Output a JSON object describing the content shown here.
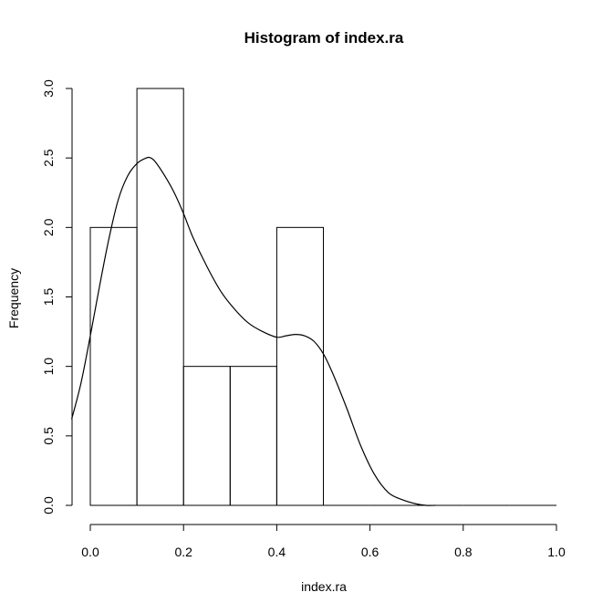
{
  "chart_data": {
    "type": "bar",
    "title": "Histogram of index.ra",
    "xlabel": "index.ra",
    "ylabel": "Frequency",
    "bins": [
      {
        "start": 0.0,
        "end": 0.1,
        "count": 2
      },
      {
        "start": 0.1,
        "end": 0.2,
        "count": 3
      },
      {
        "start": 0.2,
        "end": 0.3,
        "count": 1
      },
      {
        "start": 0.3,
        "end": 0.4,
        "count": 1
      },
      {
        "start": 0.4,
        "end": 0.5,
        "count": 2
      },
      {
        "start": 0.5,
        "end": 0.6,
        "count": 0
      },
      {
        "start": 0.6,
        "end": 0.7,
        "count": 0
      },
      {
        "start": 0.7,
        "end": 0.8,
        "count": 0
      },
      {
        "start": 0.8,
        "end": 0.9,
        "count": 0
      },
      {
        "start": 0.9,
        "end": 1.0,
        "count": 0
      }
    ],
    "xlim": [
      0.0,
      1.0
    ],
    "ylim": [
      0.0,
      3.0
    ],
    "x_ticks": [
      "0.0",
      "0.2",
      "0.4",
      "0.6",
      "0.8",
      "1.0"
    ],
    "y_ticks": [
      "0.0",
      "0.5",
      "1.0",
      "1.5",
      "2.0",
      "2.5",
      "3.0"
    ],
    "density_curve": {
      "x": [
        -0.04,
        -0.02,
        0.0,
        0.02,
        0.04,
        0.06,
        0.08,
        0.1,
        0.12,
        0.13,
        0.14,
        0.16,
        0.18,
        0.2,
        0.22,
        0.25,
        0.28,
        0.31,
        0.34,
        0.37,
        0.4,
        0.42,
        0.44,
        0.46,
        0.48,
        0.5,
        0.52,
        0.55,
        0.58,
        0.61,
        0.64,
        0.67,
        0.7,
        0.72,
        0.74
      ],
      "y": [
        0.62,
        0.88,
        1.22,
        1.58,
        1.92,
        2.2,
        2.37,
        2.46,
        2.5,
        2.5,
        2.47,
        2.37,
        2.25,
        2.1,
        1.93,
        1.72,
        1.54,
        1.41,
        1.31,
        1.25,
        1.21,
        1.22,
        1.23,
        1.22,
        1.18,
        1.09,
        0.95,
        0.7,
        0.43,
        0.22,
        0.09,
        0.04,
        0.01,
        0.0,
        0.0
      ]
    },
    "grid": false,
    "legend": "none"
  }
}
